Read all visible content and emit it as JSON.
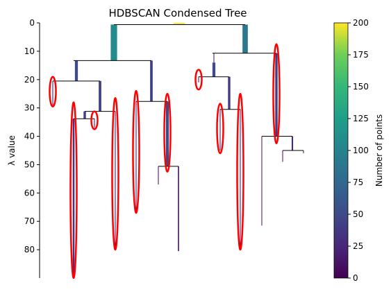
{
  "chart_data": {
    "type": "dendrogram",
    "title": "HDBSCAN Condensed Tree",
    "ylabel": "λ value",
    "ylim": [
      90,
      0
    ],
    "yticks": [
      0,
      10,
      20,
      30,
      40,
      50,
      60,
      70,
      80
    ],
    "colorbar": {
      "label": "Number of points",
      "range": [
        0,
        200
      ],
      "ticks": [
        0,
        25,
        50,
        75,
        100,
        125,
        150,
        175,
        200
      ],
      "colormap": "viridis"
    },
    "branches": [
      {
        "x": 258,
        "y_start": 0,
        "y_end": 0.6,
        "size": 200
      },
      {
        "x": 164,
        "y_start": 0.6,
        "y_end": 13.3,
        "size": 108
      },
      {
        "x": 353,
        "y_start": 0.6,
        "y_end": 10.7,
        "size": 90
      },
      {
        "x": 110,
        "y_start": 13.3,
        "y_end": 20.5,
        "size": 50
      },
      {
        "x": 218,
        "y_start": 13.3,
        "y_end": 27.7,
        "size": 44
      },
      {
        "x": 308,
        "y_start": 10.7,
        "y_end": 14,
        "size": 12
      },
      {
        "x": 398,
        "y_start": 10.7,
        "y_end": 40,
        "size": 40
      },
      {
        "x": 76,
        "y_start": 20.5,
        "y_end": 29,
        "size": 5
      },
      {
        "x": 144,
        "y_start": 20.5,
        "y_end": 31.2,
        "size": 44
      },
      {
        "x": 308,
        "y_start": 14,
        "y_end": 19,
        "size": 50
      },
      {
        "x": 196,
        "y_start": 27.7,
        "y_end": 67,
        "size": 10
      },
      {
        "x": 241,
        "y_start": 27.7,
        "y_end": 50.6,
        "size": 50
      },
      {
        "x": 286,
        "y_start": 19,
        "y_end": 21,
        "size": 5
      },
      {
        "x": 330,
        "y_start": 19,
        "y_end": 30.5,
        "size": 40
      },
      {
        "x": 122,
        "y_start": 31.2,
        "y_end": 33.8,
        "size": 40
      },
      {
        "x": 166,
        "y_start": 31.2,
        "y_end": 80,
        "size": 8
      },
      {
        "x": 317,
        "y_start": 30.5,
        "y_end": 45,
        "size": 8
      },
      {
        "x": 346,
        "y_start": 30.5,
        "y_end": 80,
        "size": 8
      },
      {
        "x": 106,
        "y_start": 33.8,
        "y_end": 90,
        "size": 30
      },
      {
        "x": 136,
        "y_start": 33.8,
        "y_end": 37,
        "size": 5
      },
      {
        "x": 377,
        "y_start": 40,
        "y_end": 71.5,
        "size": 5
      },
      {
        "x": 421,
        "y_start": 40,
        "y_end": 45,
        "size": 25
      },
      {
        "x": 228,
        "y_start": 50.6,
        "y_end": 57,
        "size": 3
      },
      {
        "x": 257,
        "y_start": 50.6,
        "y_end": 80.5,
        "size": 20
      },
      {
        "x": 407,
        "y_start": 45,
        "y_end": 49,
        "size": 3
      },
      {
        "x": 437,
        "y_start": 45,
        "y_end": 46,
        "size": 2
      }
    ],
    "joins": [
      {
        "x1": 164,
        "x2": 353,
        "y": 0.6
      },
      {
        "x1": 106,
        "x2": 218,
        "y": 13.3
      },
      {
        "x1": 306,
        "x2": 398,
        "y": 10.7
      },
      {
        "x1": 76,
        "x2": 144,
        "y": 20.5
      },
      {
        "x1": 196,
        "x2": 241,
        "y": 27.7
      },
      {
        "x1": 286,
        "x2": 330,
        "y": 19
      },
      {
        "x1": 122,
        "x2": 166,
        "y": 31.2
      },
      {
        "x1": 317,
        "x2": 346,
        "y": 30.5
      },
      {
        "x1": 106,
        "x2": 136,
        "y": 33.8
      },
      {
        "x1": 377,
        "x2": 421,
        "y": 40
      },
      {
        "x1": 228,
        "x2": 257,
        "y": 50.6
      },
      {
        "x1": 407,
        "x2": 437,
        "y": 45
      }
    ],
    "selected_clusters": [
      {
        "x": 76,
        "y_top": 19,
        "y_bottom": 29.5
      },
      {
        "x": 106,
        "y_top": 28,
        "y_bottom": 90
      },
      {
        "x": 136,
        "y_top": 31.2,
        "y_bottom": 37.5
      },
      {
        "x": 166,
        "y_top": 26.5,
        "y_bottom": 80
      },
      {
        "x": 196,
        "y_top": 24,
        "y_bottom": 67
      },
      {
        "x": 241,
        "y_top": 25,
        "y_bottom": 52.5
      },
      {
        "x": 286,
        "y_top": 16.5,
        "y_bottom": 23.5
      },
      {
        "x": 317,
        "y_top": 28.5,
        "y_bottom": 46
      },
      {
        "x": 346,
        "y_top": 25,
        "y_bottom": 80
      },
      {
        "x": 398,
        "y_top": 7.5,
        "y_bottom": 42.5
      }
    ]
  }
}
